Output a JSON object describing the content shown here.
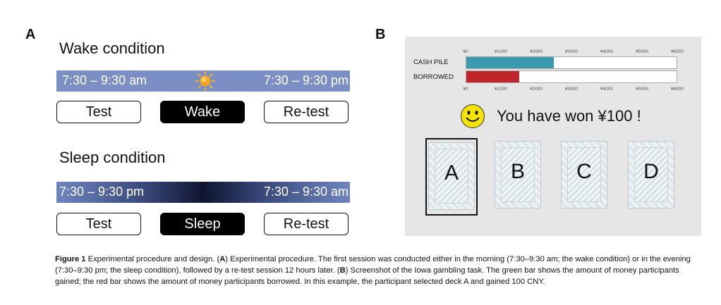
{
  "panel_a": {
    "letter": "A",
    "wake": {
      "title": "Wake condition",
      "band_left": "7:30 – 9:30 am",
      "band_right": "7:30 – 9:30 pm",
      "icon": "sun-icon",
      "steps": [
        "Test",
        "Wake",
        "Re-test"
      ]
    },
    "sleep": {
      "title": "Sleep condition",
      "band_left": "7:30 – 9:30 pm",
      "band_right": "7:30 – 9:30 am",
      "icon": "moon-icon",
      "steps": [
        "Test",
        "Sleep",
        "Re-test"
      ]
    }
  },
  "panel_b": {
    "letter": "B",
    "axis_ticks": [
      "¥0",
      "¥1000",
      "¥2000",
      "¥3000",
      "¥4000",
      "¥5000",
      "¥6000"
    ],
    "cash_pile": {
      "label": "CASH PILE",
      "value": 2500,
      "max": 6000,
      "color": "#3a9aae"
    },
    "borrowed": {
      "label": "BORROWED",
      "value": 1500,
      "max": 6000,
      "color": "#c0252b"
    },
    "message": "You have won ¥100 !",
    "icon": "smiley-icon",
    "decks": [
      "A",
      "B",
      "C",
      "D"
    ],
    "selected_deck": "A"
  },
  "caption": {
    "label": "Figure 1",
    "text_1": " Experimental procedure and design. (",
    "a": "A",
    "text_2": ") Experimental procedure. The first session was conducted either in the morning (7:30–9:30 am; the wake condition) or in the evening (7:30–9:30 pm; the sleep condition), followed by a re-test session 12 hours later. (",
    "b": "B",
    "text_3": ") Screenshot of the Iowa gambling task. The green bar shows the amount of money participants gained; the red bar shows the amount of money participants borrowed. In this example, the participant selected deck A and gained 100 CNY."
  }
}
